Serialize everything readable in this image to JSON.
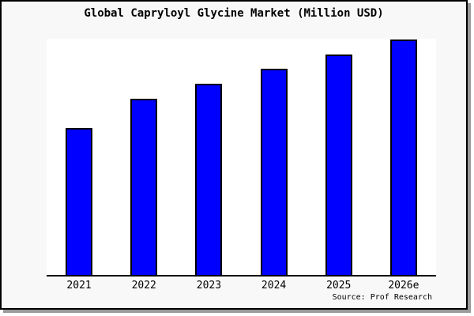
{
  "chart_data": {
    "type": "bar",
    "title": "Global Capryloyl Glycine Market (Million USD)",
    "categories": [
      "2021",
      "2022",
      "2023",
      "2024",
      "2025",
      "2026e"
    ],
    "values": [
      188,
      225,
      244,
      263,
      281,
      300
    ],
    "value_scale": "relative bar heights in pixels; chart displays no numeric y-axis",
    "xlabel": "",
    "ylabel": "",
    "grid": false,
    "legend": false,
    "y_ticks": [],
    "bar_color": "#0000ff",
    "bar_border_color": "#000000",
    "plot_background": "#ffffff",
    "figure_background": "#f8f8f8",
    "frame_border_color": "#000000",
    "shadow_color": "#9a9a9a"
  },
  "footer": {
    "source": "Source: Prof Research"
  }
}
